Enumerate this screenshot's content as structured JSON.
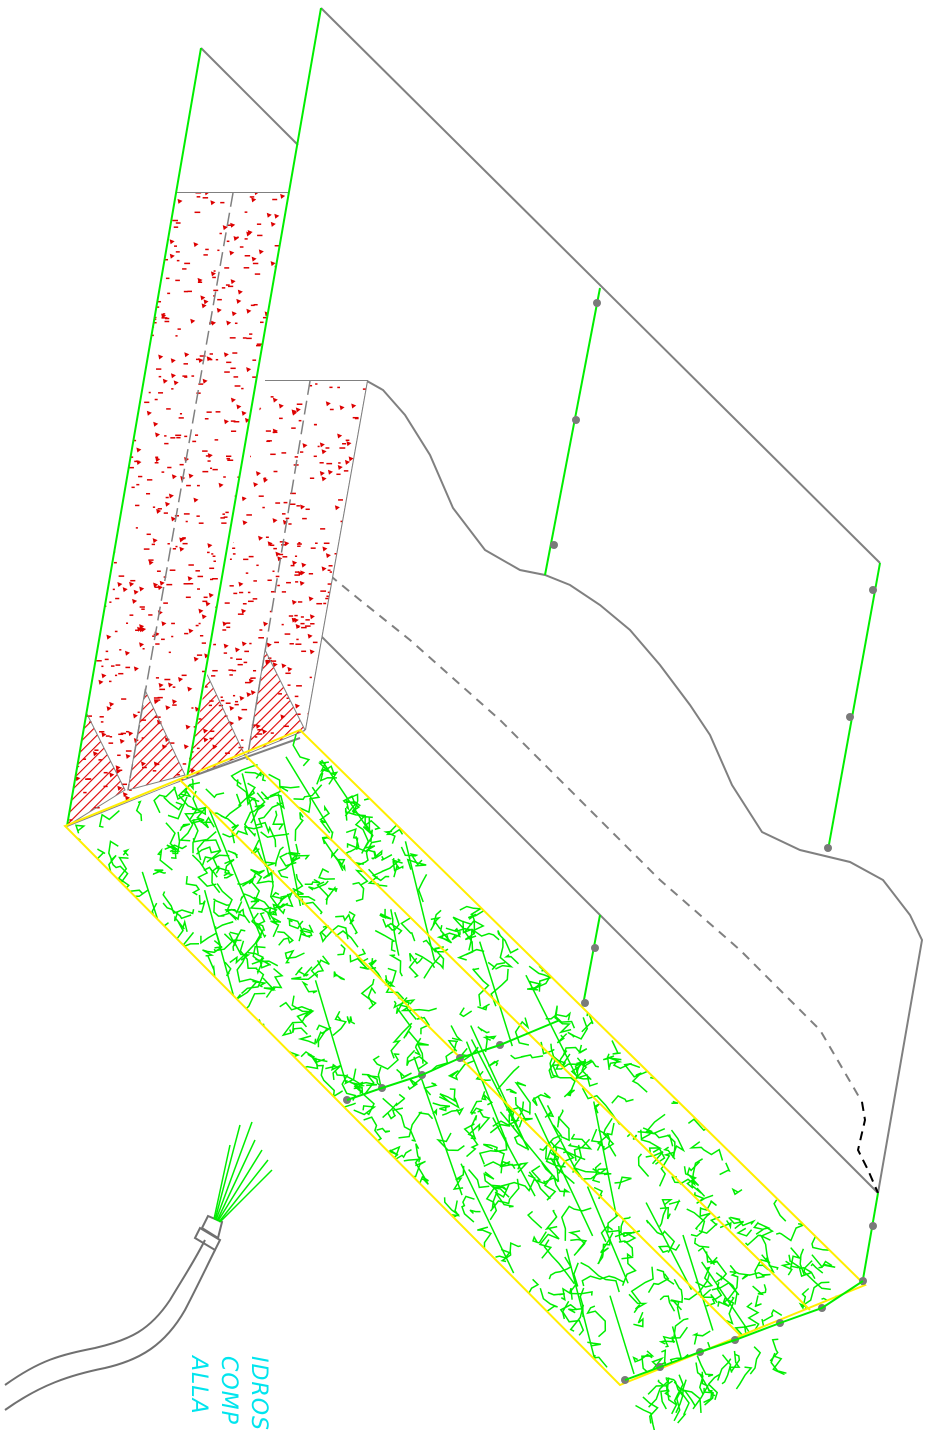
{
  "drawing": {
    "annotation_lines": [
      "IDROS",
      "COMP",
      "ALLA"
    ],
    "colors": {
      "background": "#ffffff",
      "outline": "#808080",
      "vegetation": "#00ee00",
      "border_yellow": "#ffee00",
      "hatch_red": "#dd0000",
      "text_cyan": "#00e5ee",
      "marker": "#7a7a7a",
      "dashed_black": "#000000"
    },
    "icons": [
      "vegetation-hatch",
      "red-dot-fill",
      "red-diagonal-hatch",
      "water-hose-icon",
      "survey-marker"
    ]
  }
}
